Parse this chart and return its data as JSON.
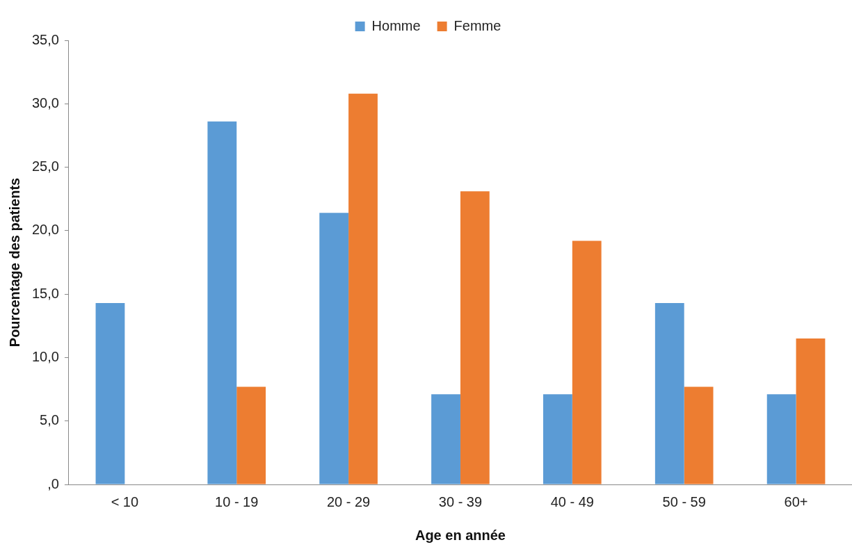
{
  "chart_data": {
    "type": "bar",
    "xlabel": "Age en année",
    "ylabel": "Pourcentage des patients",
    "categories": [
      "< 10",
      "10 - 19",
      "20 - 29",
      "30 - 39",
      "40 - 49",
      "50 - 59",
      "60+"
    ],
    "series": [
      {
        "name": "Homme",
        "color": "#5b9bd5",
        "values": [
          14.3,
          28.6,
          21.4,
          7.1,
          7.1,
          14.3,
          7.1
        ]
      },
      {
        "name": "Femme",
        "color": "#ed7d31",
        "values": [
          0,
          7.7,
          30.8,
          23.1,
          19.2,
          7.7,
          11.5
        ]
      }
    ],
    "ylim": [
      0,
      35
    ],
    "yticks": [
      {
        "value": 0,
        "label": ",0"
      },
      {
        "value": 5,
        "label": "5,0"
      },
      {
        "value": 10,
        "label": "10,0"
      },
      {
        "value": 15,
        "label": "15,0"
      },
      {
        "value": 20,
        "label": "20,0"
      },
      {
        "value": 25,
        "label": "25,0"
      },
      {
        "value": 30,
        "label": "30,0"
      },
      {
        "value": 35,
        "label": "35,0"
      }
    ],
    "grid": false,
    "legend": "top"
  }
}
